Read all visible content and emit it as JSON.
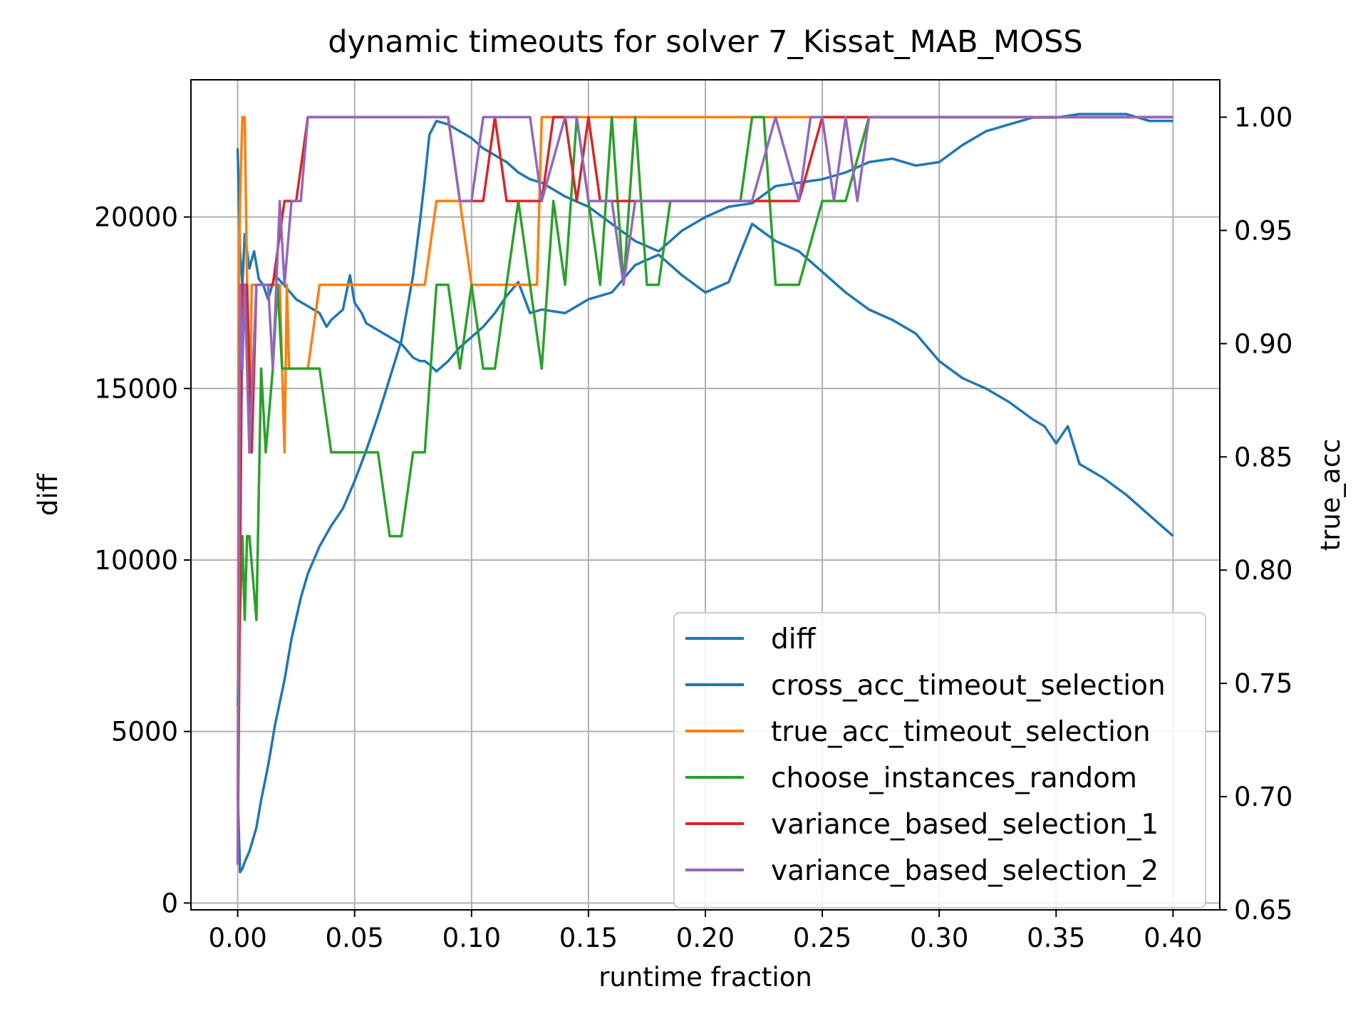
{
  "chart_data": {
    "type": "line",
    "title": "dynamic timeouts for solver 7_Kissat_MAB_MOSS",
    "xlabel": "runtime fraction",
    "ylabel_left": "diff",
    "ylabel_right": "true_acc",
    "ylabel_left_color": "#008000",
    "ylabel_right_color": "#ff0000",
    "xlim": [
      -0.02,
      0.42
    ],
    "ylim_left": [
      -200,
      24000
    ],
    "ylim_right": [
      0.65,
      1.0165
    ],
    "x_ticks": [
      0.0,
      0.05,
      0.1,
      0.15,
      0.2,
      0.25,
      0.3,
      0.35,
      0.4
    ],
    "x_tick_labels": [
      "0.00",
      "0.05",
      "0.10",
      "0.15",
      "0.20",
      "0.25",
      "0.30",
      "0.35",
      "0.40"
    ],
    "y_left_ticks": [
      0,
      5000,
      10000,
      15000,
      20000
    ],
    "y_left_tick_labels": [
      "0",
      "5000",
      "10000",
      "15000",
      "20000"
    ],
    "y_right_ticks": [
      0.65,
      0.7,
      0.75,
      0.8,
      0.85,
      0.9,
      0.95,
      1.0
    ],
    "y_right_tick_labels": [
      "0.65",
      "0.70",
      "0.75",
      "0.80",
      "0.85",
      "0.90",
      "0.95",
      "1.00"
    ],
    "grid": true,
    "legend_placement": "lower-right",
    "series": [
      {
        "name": "diff",
        "axis": "left",
        "color": "#1f77b4",
        "x": [
          0.0,
          0.001,
          0.002,
          0.003,
          0.005,
          0.007,
          0.009,
          0.011,
          0.013,
          0.016,
          0.02,
          0.025,
          0.03,
          0.035,
          0.038,
          0.04,
          0.045,
          0.048,
          0.05,
          0.053,
          0.055,
          0.06,
          0.065,
          0.07,
          0.075,
          0.078,
          0.08,
          0.082,
          0.085,
          0.09,
          0.095,
          0.1,
          0.105,
          0.11,
          0.115,
          0.12,
          0.125,
          0.13,
          0.14,
          0.15,
          0.16,
          0.17,
          0.18,
          0.19,
          0.2,
          0.21,
          0.22,
          0.23,
          0.24,
          0.25,
          0.26,
          0.27,
          0.28,
          0.29,
          0.3,
          0.31,
          0.32,
          0.33,
          0.34,
          0.345,
          0.35,
          0.355,
          0.36,
          0.37,
          0.38,
          0.39,
          0.4
        ],
        "y": [
          22000,
          19000,
          18000,
          19500,
          18500,
          19000,
          18200,
          18000,
          17600,
          18300,
          18000,
          17600,
          17400,
          17200,
          16800,
          17000,
          17300,
          18300,
          17500,
          17200,
          16900,
          16700,
          16500,
          16300,
          15900,
          15800,
          15800,
          15700,
          15500,
          15800,
          16200,
          16500,
          16800,
          17200,
          17700,
          18100,
          17200,
          17300,
          17200,
          17600,
          17800,
          18600,
          18900,
          18300,
          17800,
          18100,
          19800,
          19300,
          19000,
          18400,
          17800,
          17300,
          17000,
          16600,
          15800,
          15300,
          15000,
          14600,
          14100,
          13900,
          13400,
          13900,
          12800,
          12400,
          11900,
          11300,
          10700
        ]
      },
      {
        "name": "cross_acc_timeout_selection",
        "axis": "left",
        "color": "#1f77b4",
        "x": [
          0.0,
          0.001,
          0.002,
          0.003,
          0.005,
          0.008,
          0.01,
          0.013,
          0.016,
          0.02,
          0.023,
          0.027,
          0.03,
          0.035,
          0.04,
          0.045,
          0.05,
          0.055,
          0.06,
          0.065,
          0.07,
          0.075,
          0.078,
          0.08,
          0.082,
          0.085,
          0.09,
          0.095,
          0.1,
          0.105,
          0.11,
          0.115,
          0.12,
          0.125,
          0.13,
          0.14,
          0.15,
          0.16,
          0.17,
          0.18,
          0.19,
          0.2,
          0.21,
          0.22,
          0.23,
          0.24,
          0.25,
          0.26,
          0.27,
          0.28,
          0.29,
          0.3,
          0.31,
          0.32,
          0.33,
          0.34,
          0.35,
          0.36,
          0.37,
          0.38,
          0.39,
          0.4
        ],
        "y": [
          3200,
          900,
          1000,
          1200,
          1500,
          2200,
          3000,
          4000,
          5200,
          6500,
          7700,
          8900,
          9600,
          10400,
          11000,
          11500,
          12300,
          13200,
          14200,
          15300,
          16400,
          18300,
          19900,
          21100,
          22400,
          22800,
          22700,
          22500,
          22300,
          22000,
          21800,
          21600,
          21300,
          21100,
          21000,
          20600,
          20300,
          19800,
          19300,
          19000,
          19600,
          20000,
          20300,
          20400,
          20900,
          21000,
          21100,
          21300,
          21600,
          21700,
          21500,
          21600,
          22100,
          22500,
          22700,
          22900,
          22900,
          23000,
          23000,
          23000,
          22800,
          22800
        ]
      },
      {
        "name": "true_acc_timeout_selection",
        "axis": "right",
        "color": "#ff7f0e",
        "x": [
          0.0,
          0.0005,
          0.001,
          0.002,
          0.003,
          0.004,
          0.005,
          0.006,
          0.008,
          0.012,
          0.018,
          0.019,
          0.02,
          0.021,
          0.022,
          0.03,
          0.035,
          0.04,
          0.05,
          0.06,
          0.07,
          0.08,
          0.085,
          0.09,
          0.095,
          0.1,
          0.105,
          0.11,
          0.115,
          0.12,
          0.128,
          0.13,
          0.14,
          0.15,
          0.16,
          0.17,
          0.18,
          0.2,
          0.25,
          0.3,
          0.35,
          0.4
        ],
        "y": [
          0.7,
          0.926,
          0.963,
          1.0,
          1.0,
          0.926,
          0.852,
          0.926,
          0.926,
          0.926,
          0.926,
          0.889,
          0.852,
          0.926,
          0.889,
          0.889,
          0.926,
          0.926,
          0.926,
          0.926,
          0.926,
          0.926,
          0.963,
          0.963,
          0.963,
          0.926,
          0.926,
          0.926,
          0.926,
          0.926,
          0.926,
          1.0,
          1.0,
          1.0,
          1.0,
          1.0,
          1.0,
          1.0,
          1.0,
          1.0,
          1.0,
          1.0
        ]
      },
      {
        "name": "choose_instances_random",
        "axis": "right",
        "color": "#2ca02c",
        "x": [
          0.0,
          0.001,
          0.002,
          0.003,
          0.004,
          0.005,
          0.008,
          0.01,
          0.012,
          0.015,
          0.017,
          0.019,
          0.022,
          0.025,
          0.03,
          0.035,
          0.04,
          0.045,
          0.05,
          0.055,
          0.06,
          0.065,
          0.07,
          0.075,
          0.08,
          0.085,
          0.09,
          0.095,
          0.1,
          0.105,
          0.11,
          0.115,
          0.12,
          0.125,
          0.13,
          0.135,
          0.14,
          0.145,
          0.15,
          0.155,
          0.16,
          0.165,
          0.17,
          0.175,
          0.18,
          0.185,
          0.2,
          0.215,
          0.22,
          0.225,
          0.23,
          0.24,
          0.25,
          0.26,
          0.27,
          0.28,
          0.3,
          0.35,
          0.4
        ],
        "y": [
          0.74,
          0.78,
          0.815,
          0.778,
          0.815,
          0.815,
          0.778,
          0.889,
          0.852,
          0.889,
          0.926,
          0.889,
          0.889,
          0.889,
          0.889,
          0.889,
          0.852,
          0.852,
          0.852,
          0.852,
          0.852,
          0.815,
          0.815,
          0.852,
          0.852,
          0.926,
          0.926,
          0.889,
          0.926,
          0.889,
          0.889,
          0.926,
          0.963,
          0.926,
          0.889,
          0.963,
          0.926,
          1.0,
          0.963,
          0.926,
          1.0,
          0.926,
          1.0,
          0.926,
          0.926,
          0.963,
          0.963,
          0.963,
          1.0,
          1.0,
          0.926,
          0.926,
          0.963,
          0.963,
          1.0,
          1.0,
          1.0,
          1.0,
          1.0
        ]
      },
      {
        "name": "variance_based_selection_1",
        "axis": "right",
        "color": "#d62728",
        "x": [
          0.0,
          0.002,
          0.004,
          0.006,
          0.008,
          0.01,
          0.012,
          0.015,
          0.02,
          0.025,
          0.03,
          0.035,
          0.04,
          0.05,
          0.06,
          0.07,
          0.08,
          0.09,
          0.095,
          0.1,
          0.105,
          0.11,
          0.115,
          0.12,
          0.13,
          0.135,
          0.14,
          0.145,
          0.15,
          0.155,
          0.16,
          0.17,
          0.2,
          0.22,
          0.23,
          0.24,
          0.25,
          0.26,
          0.27,
          0.3,
          0.35,
          0.4
        ],
        "y": [
          0.67,
          0.926,
          0.926,
          0.852,
          0.926,
          0.926,
          0.926,
          0.926,
          0.963,
          0.963,
          1.0,
          1.0,
          1.0,
          1.0,
          1.0,
          1.0,
          1.0,
          1.0,
          0.963,
          0.963,
          0.963,
          1.0,
          0.963,
          0.963,
          0.963,
          1.0,
          1.0,
          0.963,
          1.0,
          0.963,
          0.963,
          0.963,
          0.963,
          0.963,
          0.963,
          0.963,
          1.0,
          1.0,
          1.0,
          1.0,
          1.0,
          1.0
        ]
      },
      {
        "name": "variance_based_selection_2",
        "axis": "right",
        "color": "#9467bd",
        "x": [
          0.0,
          0.001,
          0.002,
          0.003,
          0.005,
          0.008,
          0.01,
          0.013,
          0.015,
          0.018,
          0.02,
          0.023,
          0.027,
          0.03,
          0.035,
          0.04,
          0.05,
          0.06,
          0.07,
          0.08,
          0.09,
          0.095,
          0.1,
          0.105,
          0.11,
          0.115,
          0.12,
          0.125,
          0.13,
          0.14,
          0.145,
          0.15,
          0.16,
          0.165,
          0.17,
          0.18,
          0.2,
          0.22,
          0.23,
          0.24,
          0.245,
          0.25,
          0.255,
          0.26,
          0.265,
          0.27,
          0.3,
          0.35,
          0.4
        ],
        "y": [
          0.67,
          0.926,
          0.889,
          0.926,
          0.852,
          0.926,
          0.926,
          0.926,
          0.889,
          0.963,
          0.926,
          0.963,
          0.963,
          1.0,
          1.0,
          1.0,
          1.0,
          1.0,
          1.0,
          1.0,
          1.0,
          0.963,
          0.963,
          1.0,
          1.0,
          1.0,
          1.0,
          1.0,
          0.963,
          1.0,
          1.0,
          0.963,
          0.963,
          0.926,
          0.963,
          0.963,
          0.963,
          0.963,
          1.0,
          0.963,
          1.0,
          1.0,
          0.963,
          1.0,
          0.963,
          1.0,
          1.0,
          1.0,
          1.0
        ]
      }
    ]
  }
}
